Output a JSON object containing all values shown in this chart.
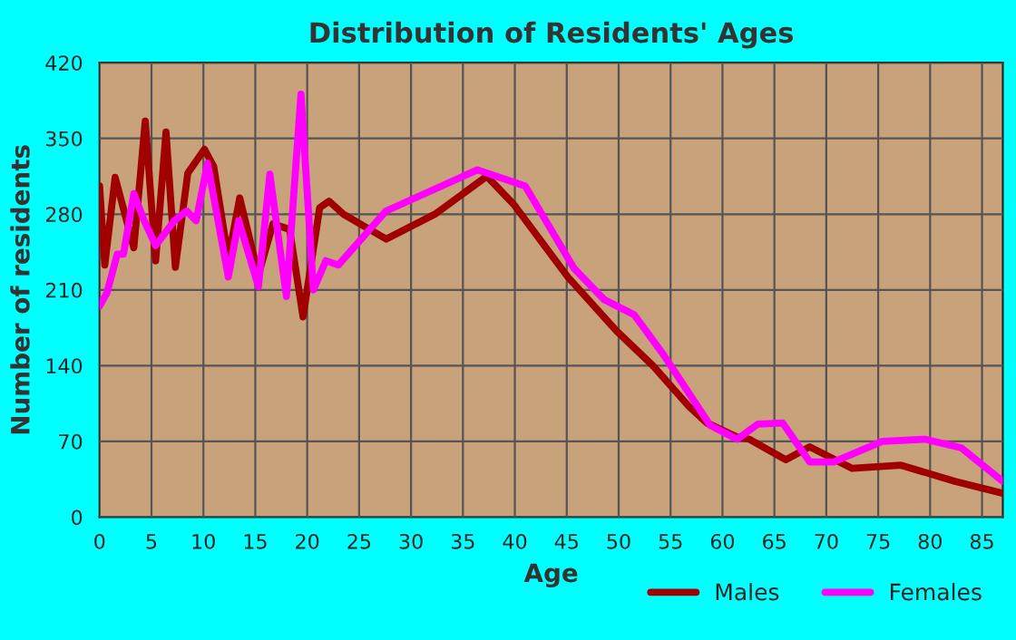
{
  "chart_data": {
    "type": "line",
    "title": "Distribution of Residents' Ages",
    "xlabel": "Age",
    "ylabel": "Number of residents",
    "xlim": [
      0,
      87
    ],
    "xticks": [
      0,
      5,
      10,
      15,
      20,
      25,
      30,
      35,
      40,
      45,
      50,
      55,
      60,
      65,
      70,
      75,
      80,
      85
    ],
    "ylim": [
      0,
      420
    ],
    "yticks": [
      0,
      70,
      140,
      210,
      280,
      350,
      420
    ],
    "grid": true,
    "legend": "bottom right",
    "line_style": "solid",
    "marker": "none",
    "series": [
      {
        "name": "Males",
        "color": "#a00000",
        "x": [
          0,
          0.5,
          1.5,
          3.3,
          4.4,
          5.4,
          6.4,
          7.3,
          8.5,
          10.1,
          11,
          12.4,
          13.5,
          15.3,
          16.7,
          18.3,
          19.6,
          21.2,
          22.1,
          23.5,
          27.6,
          32.3,
          37.3,
          39.9,
          45.1,
          49.8,
          53.3,
          56.8,
          58.5,
          61.4,
          62.6,
          66.1,
          68.4,
          72.5,
          77.2,
          82.4,
          87
        ],
        "values": [
          306,
          233,
          314,
          249,
          366,
          237,
          356,
          231,
          318,
          340,
          324,
          239,
          295,
          224,
          271,
          266,
          185,
          286,
          292,
          280,
          257,
          280,
          315,
          289,
          222,
          172,
          140,
          102,
          87,
          74,
          72,
          53,
          65,
          45,
          48,
          33,
          22
        ]
      },
      {
        "name": "Females",
        "color": "#ff00ff",
        "x": [
          0,
          0.7,
          1.7,
          2.3,
          3.3,
          4.3,
          5.4,
          7.2,
          8.4,
          9.3,
          10.4,
          12.4,
          13.4,
          15.3,
          16.4,
          18,
          19.4,
          20.6,
          21.8,
          23,
          27.6,
          36.4,
          41,
          45.7,
          48.6,
          51.5,
          54.4,
          58.8,
          61.4,
          63.4,
          65.8,
          68.4,
          70.7,
          75.4,
          79.5,
          83,
          87
        ],
        "values": [
          195,
          207,
          243,
          243,
          299,
          274,
          251,
          274,
          283,
          274,
          327,
          222,
          274,
          213,
          317,
          204,
          391,
          210,
          237,
          233,
          283,
          321,
          306,
          230,
          201,
          187,
          149,
          85,
          72,
          86,
          87,
          51,
          51,
          70,
          72,
          64,
          33
        ]
      }
    ]
  }
}
